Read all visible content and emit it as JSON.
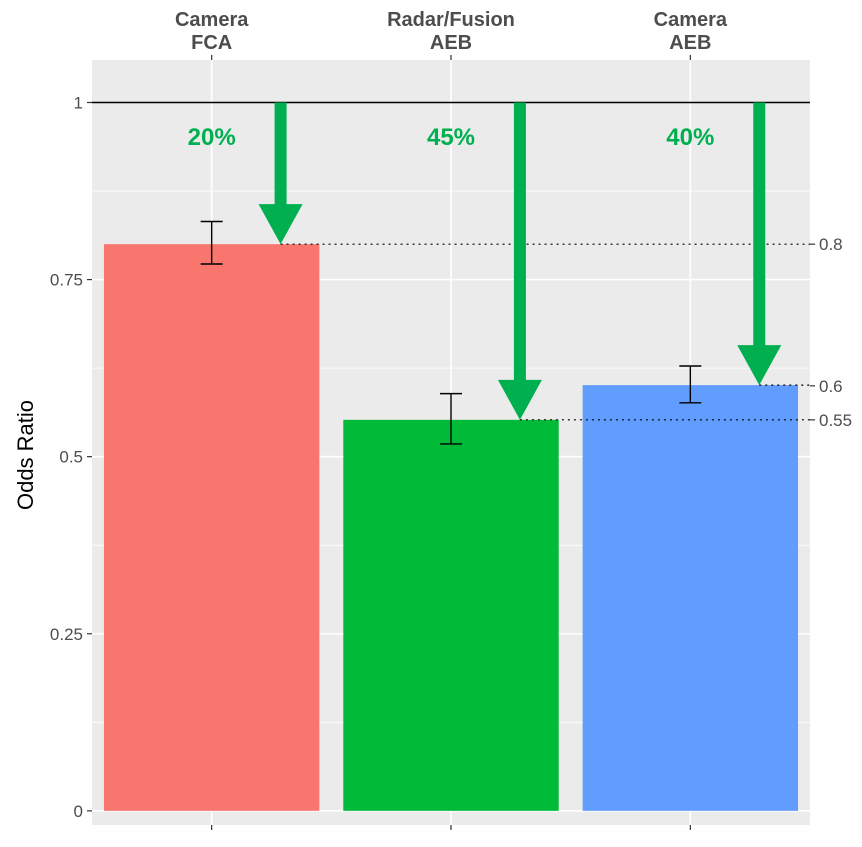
{
  "chart_data": {
    "type": "bar",
    "categories": [
      "Camera\nFCA",
      "Radar/Fusion\nAEB",
      "Camera\nAEB"
    ],
    "values": [
      0.8,
      0.552,
      0.601
    ],
    "error_low": [
      0.772,
      0.518,
      0.576
    ],
    "error_high": [
      0.832,
      0.589,
      0.628
    ],
    "bar_colors": [
      "#F8766D",
      "#00BA38",
      "#619CFF"
    ],
    "reduction_labels": [
      "20%",
      "45%",
      "40%"
    ],
    "reduction_color": "#00B050",
    "reference_line": 1,
    "reference_label": "1",
    "right_axis_labels": [
      "0.8",
      "0.6",
      "0.55"
    ],
    "right_axis_values": [
      0.8,
      0.6,
      0.552
    ],
    "y_ticks": [
      0,
      0.25,
      0.5,
      0.75
    ],
    "y_tick_labels": [
      "0",
      "0.25",
      "0.5",
      "0.75"
    ],
    "ylabel": "Odds Ratio",
    "xlabel": "",
    "title": "",
    "ylim": [
      -0.02,
      1.06
    ],
    "grid": true,
    "legend": "none"
  }
}
